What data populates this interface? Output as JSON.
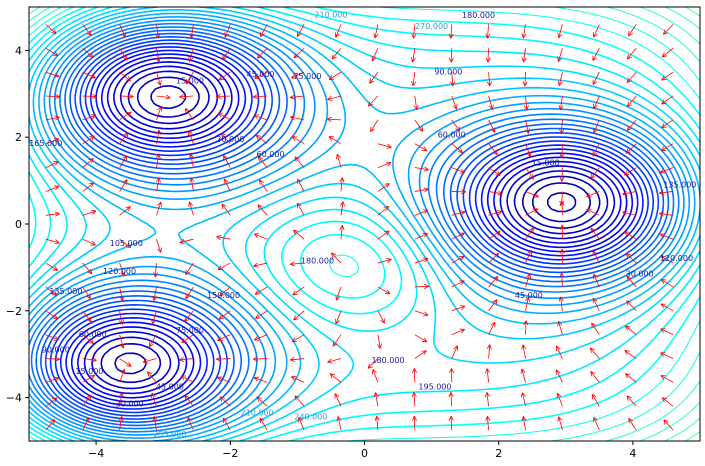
{
  "chart_data": {
    "type": "contour",
    "title": "",
    "xlabel": "",
    "ylabel": "",
    "xlim": [
      -5,
      5
    ],
    "ylim": [
      -5,
      5
    ],
    "x_ticks": [
      -4,
      -2,
      0,
      2,
      4
    ],
    "y_ticks": [
      -4,
      -2,
      0,
      2,
      4
    ],
    "x_tick_labels": [
      "−4",
      "−2",
      "0",
      "2",
      "4"
    ],
    "y_tick_labels": [
      "−4",
      "−2",
      "0",
      "2",
      "4"
    ],
    "grid": false,
    "colormap": "jet",
    "arrow_color": "#ff0000",
    "minima": [
      {
        "x": -3.0,
        "y": 3.0,
        "depth": 0
      },
      {
        "x": -3.6,
        "y": -3.3,
        "depth": 0
      },
      {
        "x": 3.0,
        "y": 0.5,
        "depth": 0
      }
    ],
    "maximum": {
      "x": -0.2,
      "y": -0.9
    },
    "contour_labels": [
      {
        "text": "15.000",
        "x": -2.6,
        "y": 3.3
      },
      {
        "text": "30.000",
        "x": -2.0,
        "y": 1.95
      },
      {
        "text": "45.000",
        "x": -1.55,
        "y": 3.45
      },
      {
        "text": "60.000",
        "x": -1.4,
        "y": 1.6
      },
      {
        "text": "75.000",
        "x": -0.85,
        "y": 3.4
      },
      {
        "text": "90.000",
        "x": 1.25,
        "y": 3.5
      },
      {
        "text": "105.000",
        "x": -3.55,
        "y": -0.45
      },
      {
        "text": "120.000",
        "x": -3.65,
        "y": -1.1
      },
      {
        "text": "150.000",
        "x": -2.1,
        "y": -1.65
      },
      {
        "text": "180.000",
        "x": -0.7,
        "y": -0.85
      },
      {
        "text": "180.000",
        "x": 0.35,
        "y": -3.15
      },
      {
        "text": "195.000",
        "x": 1.05,
        "y": -3.75
      },
      {
        "text": "210.000",
        "x": -1.6,
        "y": -4.35
      },
      {
        "text": "240.000",
        "x": -0.8,
        "y": -4.45
      },
      {
        "text": "255.000",
        "x": -2.9,
        "y": -4.85
      },
      {
        "text": "60.000",
        "x": -4.05,
        "y": -2.55
      },
      {
        "text": "90.000",
        "x": -4.6,
        "y": -2.9
      },
      {
        "text": "75.000",
        "x": -2.6,
        "y": -2.45
      },
      {
        "text": "15.000",
        "x": -4.1,
        "y": -3.4
      },
      {
        "text": "30.000",
        "x": -3.5,
        "y": -4.15
      },
      {
        "text": "45.000",
        "x": -2.9,
        "y": -3.75
      },
      {
        "text": "60.000",
        "x": 1.3,
        "y": 2.05
      },
      {
        "text": "15.000",
        "x": 2.7,
        "y": 1.4
      },
      {
        "text": "45.000",
        "x": 2.45,
        "y": -1.65
      },
      {
        "text": "30.000",
        "x": 4.1,
        "y": -1.15
      },
      {
        "text": "120.000",
        "x": 4.65,
        "y": -0.8
      },
      {
        "text": "135.000",
        "x": 4.7,
        "y": 0.9
      },
      {
        "text": "165.000",
        "x": -4.75,
        "y": 1.85
      },
      {
        "text": "135.000",
        "x": -4.45,
        "y": -1.55
      },
      {
        "text": "270.000",
        "x": 1.0,
        "y": 4.55
      },
      {
        "text": "210.000",
        "x": -0.5,
        "y": 4.82
      },
      {
        "text": "180.000",
        "x": 1.7,
        "y": 4.8
      }
    ]
  }
}
